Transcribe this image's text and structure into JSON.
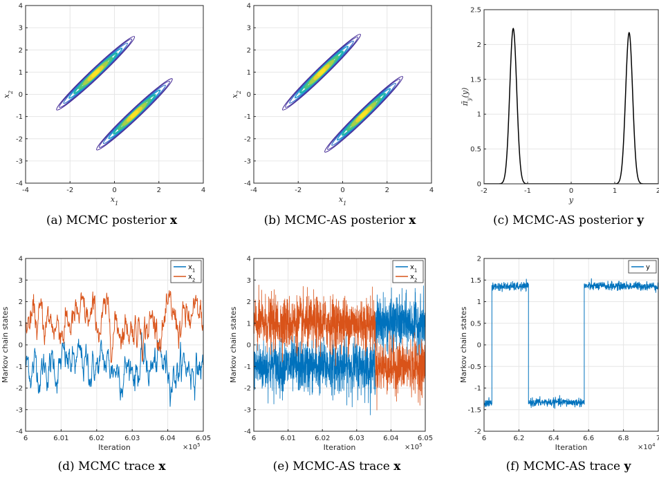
{
  "chart_data": [
    {
      "id": "a",
      "type": "contour",
      "caption": "(a) MCMC posterior x",
      "caption_text": "(a) MCMC posterior ",
      "caption_bold": "x",
      "xlabel": "x1",
      "ylabel": "x2",
      "xlim": [
        -4,
        4
      ],
      "ylim": [
        -4,
        4
      ],
      "xticks": [
        -4,
        -2,
        0,
        2,
        4
      ],
      "yticks": [
        -4,
        -3,
        -2,
        -1,
        0,
        1,
        2,
        3,
        4
      ],
      "grid": true,
      "modes": [
        {
          "center": [
            -1.0,
            1.0
          ],
          "ends": [
            [
              -2.6,
              -0.7
            ],
            [
              0.9,
              2.6
            ]
          ]
        },
        {
          "center": [
            1.0,
            -1.0
          ],
          "ends": [
            [
              -0.8,
              -2.5
            ],
            [
              2.6,
              0.7
            ]
          ]
        }
      ]
    },
    {
      "id": "b",
      "type": "contour",
      "caption": "(b) MCMC-AS posterior x",
      "caption_text": "(b) MCMC-AS posterior ",
      "caption_bold": "x",
      "xlabel": "x1",
      "ylabel": "x2",
      "xlim": [
        -4,
        4
      ],
      "ylim": [
        -4,
        4
      ],
      "xticks": [
        -4,
        -2,
        0,
        2,
        4
      ],
      "yticks": [
        -4,
        -3,
        -2,
        -1,
        0,
        1,
        2,
        3,
        4
      ],
      "grid": true,
      "modes": [
        {
          "center": [
            -1.0,
            1.0
          ],
          "ends": [
            [
              -2.7,
              -0.7
            ],
            [
              0.8,
              2.7
            ]
          ]
        },
        {
          "center": [
            1.0,
            -1.0
          ],
          "ends": [
            [
              -0.8,
              -2.6
            ],
            [
              2.7,
              0.8
            ]
          ]
        }
      ]
    },
    {
      "id": "c",
      "type": "line",
      "caption": "(c) MCMC-AS posterior y",
      "caption_text": "(c) MCMC-AS posterior ",
      "caption_bold": "y",
      "xlabel": "y",
      "ylabel": "π̃y(y)",
      "xlim": [
        -2,
        2
      ],
      "ylim": [
        0,
        2.5
      ],
      "xticks": [
        -2,
        -1,
        0,
        1,
        2
      ],
      "yticks": [
        0,
        0.5,
        1,
        1.5,
        2,
        2.5
      ],
      "grid": true,
      "peaks": [
        {
          "x": -1.33,
          "height": 2.23,
          "width": 0.08
        },
        {
          "x": 1.33,
          "height": 2.17,
          "width": 0.08
        }
      ]
    },
    {
      "id": "d",
      "type": "line",
      "caption": "(d) MCMC trace x",
      "caption_text": "(d) MCMC trace ",
      "caption_bold": "x",
      "xlabel": "Iteration",
      "ylabel": "Markov chain states",
      "x_exponent": "×10^5",
      "xlim": [
        6.0,
        6.05
      ],
      "ylim": [
        -4,
        4
      ],
      "xticks": [
        6,
        6.01,
        6.02,
        6.03,
        6.04,
        6.05
      ],
      "yticks": [
        -4,
        -3,
        -2,
        -1,
        0,
        1,
        2,
        3,
        4
      ],
      "grid": true,
      "legend": "top-right",
      "series": [
        {
          "name": "x1",
          "color": "#0072BD",
          "mean": -1.0,
          "sd": 0.6
        },
        {
          "name": "x2",
          "color": "#D95319",
          "mean": 1.0,
          "sd": 0.6
        }
      ]
    },
    {
      "id": "e",
      "type": "line",
      "caption": "(e) MCMC-AS trace x",
      "caption_text": "(e) MCMC-AS trace ",
      "caption_bold": "x",
      "xlabel": "Iteration",
      "ylabel": "Markov chain states",
      "x_exponent": "×10^5",
      "xlim": [
        6.0,
        6.05
      ],
      "ylim": [
        -4,
        4
      ],
      "xticks": [
        6,
        6.01,
        6.02,
        6.03,
        6.04,
        6.05
      ],
      "yticks": [
        -4,
        -3,
        -2,
        -1,
        0,
        1,
        2,
        3,
        4
      ],
      "grid": true,
      "legend": "top-right",
      "switch_x": 6.0355,
      "series": [
        {
          "name": "x1",
          "color": "#0072BD",
          "mean_before": -1.0,
          "mean_after": 1.0,
          "sd": 0.6
        },
        {
          "name": "x2",
          "color": "#D95319",
          "mean_before": 1.0,
          "mean_after": -1.0,
          "sd": 0.6
        }
      ]
    },
    {
      "id": "f",
      "type": "line",
      "caption": "(f) MCMC-AS trace y",
      "caption_text": "(f) MCMC-AS trace ",
      "caption_bold": "y",
      "xlabel": "Iteration",
      "ylabel": "Markov chain states",
      "x_exponent": "×10^4",
      "xlim": [
        6.0,
        7.0
      ],
      "ylim": [
        -2,
        2
      ],
      "xticks": [
        6,
        6.2,
        6.4,
        6.6,
        6.8,
        7
      ],
      "yticks": [
        -2,
        -1.5,
        -1,
        -0.5,
        0,
        0.5,
        1,
        1.5,
        2
      ],
      "grid": true,
      "legend": "top-right",
      "series": [
        {
          "name": "y",
          "color": "#0072BD",
          "segments": [
            [
              6.0,
              6.045,
              -1.35
            ],
            [
              6.045,
              6.255,
              1.35
            ],
            [
              6.255,
              6.575,
              -1.33
            ],
            [
              6.575,
              7.0,
              1.36
            ]
          ],
          "sd": 0.05
        }
      ]
    }
  ]
}
